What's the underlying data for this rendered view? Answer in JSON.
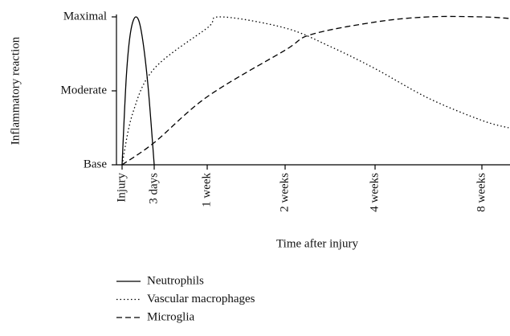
{
  "chart_data": {
    "type": "line",
    "ylabel": "Inflammatory reaction",
    "xlabel": "Time after injury",
    "ylim": [
      0,
      2
    ],
    "yticks": [
      {
        "value": 0,
        "label": "Base"
      },
      {
        "value": 1,
        "label": "Moderate"
      },
      {
        "value": 2,
        "label": "Maximal"
      }
    ],
    "xlim": [
      0,
      63
    ],
    "xticks": [
      {
        "value": 0,
        "label": "Injury"
      },
      {
        "value": 3,
        "label": "3 days"
      },
      {
        "value": 7,
        "label": "1 week"
      },
      {
        "value": 14,
        "label": "2 weeks"
      },
      {
        "value": 28,
        "label": "4 weeks"
      },
      {
        "value": 56,
        "label": "8 weeks"
      }
    ],
    "series": [
      {
        "name": "Neutrophils",
        "color": "#000000",
        "line_style": "solid",
        "x": [
          0,
          0.4,
          0.8,
          1.3,
          1.8,
          2.4,
          3
        ],
        "values": [
          0,
          1.2,
          1.8,
          2.0,
          1.8,
          1.1,
          0
        ]
      },
      {
        "name": "Vascular macrophages",
        "color": "#000000",
        "line_style": "dotted",
        "x": [
          0,
          1,
          3,
          7,
          8.2,
          14,
          21,
          28,
          42,
          56,
          63
        ],
        "values": [
          0,
          0.7,
          1.3,
          1.85,
          2.0,
          1.85,
          1.6,
          1.3,
          0.9,
          0.6,
          0.5
        ]
      },
      {
        "name": "Microglia",
        "color": "#000000",
        "line_style": "dashed",
        "x": [
          0,
          3,
          7,
          14,
          18,
          28,
          42,
          56,
          63
        ],
        "values": [
          0,
          0.3,
          0.92,
          1.55,
          1.76,
          1.93,
          2.0,
          2.0,
          1.98
        ]
      }
    ]
  }
}
